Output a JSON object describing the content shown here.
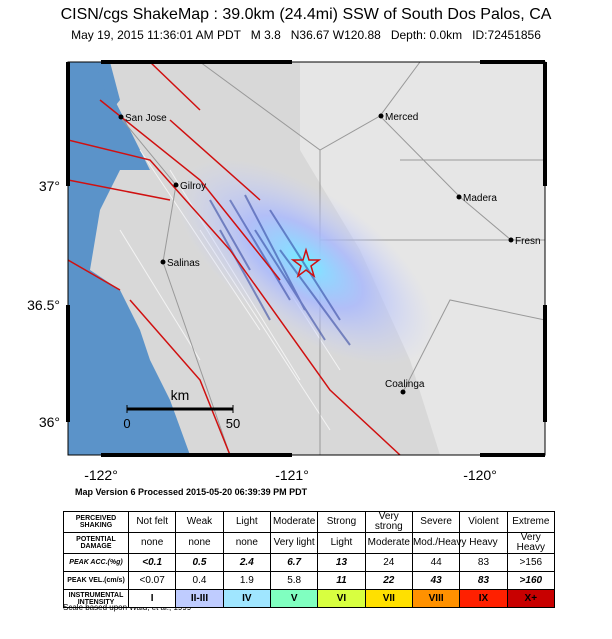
{
  "header": {
    "title": "CISN/cgs ShakeMap : 39.0km (24.4mi) SSW of South Dos Palos, CA",
    "subtitle": "May 19, 2015 11:36:01 AM PDT   M 3.8   N36.67 W120.88   Depth: 0.0km   ID:72451856"
  },
  "map": {
    "lat_labels": [
      "37°",
      "36.5°",
      "36°"
    ],
    "lon_labels": [
      "-122°",
      "-121°",
      "-120°"
    ],
    "cities": [
      "San Jose",
      "Merced",
      "Gilroy",
      "Madera",
      "Fresn",
      "Salinas",
      "Coalinga"
    ],
    "scale": {
      "unit": "km",
      "labels": [
        "0",
        "50"
      ]
    }
  },
  "caption": "Map Version 6 Processed 2015-05-20 06:39:39 PM PDT",
  "legend_table": {
    "row_labels": [
      "PERCEIVED SHAKING",
      "POTENTIAL DAMAGE",
      "PEAK ACC.(%g)",
      "PEAK VEL.(cm/s)",
      "INSTRUMENTAL INTENSITY"
    ],
    "rows": [
      [
        "Not felt",
        "Weak",
        "Light",
        "Moderate",
        "Strong",
        "Very strong",
        "Severe",
        "Violent",
        "Extreme"
      ],
      [
        "none",
        "none",
        "none",
        "Very light",
        "Light",
        "Moderate",
        "Mod./Heavy",
        "Heavy",
        "Very Heavy"
      ],
      [
        "<0.1",
        "0.5",
        "2.4",
        "6.7",
        "13",
        "24",
        "44",
        "83",
        ">156"
      ],
      [
        "<0.07",
        "0.4",
        "1.9",
        "5.8",
        "11",
        "22",
        "43",
        "83",
        ">160"
      ],
      [
        "I",
        "II-III",
        "IV",
        "V",
        "VI",
        "VII",
        "VIII",
        "IX",
        "X+"
      ]
    ],
    "colors": [
      "#ffffff",
      "#bfccff",
      "#a0e6ff",
      "#80ffc0",
      "#d8ff40",
      "#ffe000",
      "#ff9100",
      "#ff2000",
      "#c80000"
    ]
  },
  "footer": "Scale based upon Wald, et al.; 1999"
}
